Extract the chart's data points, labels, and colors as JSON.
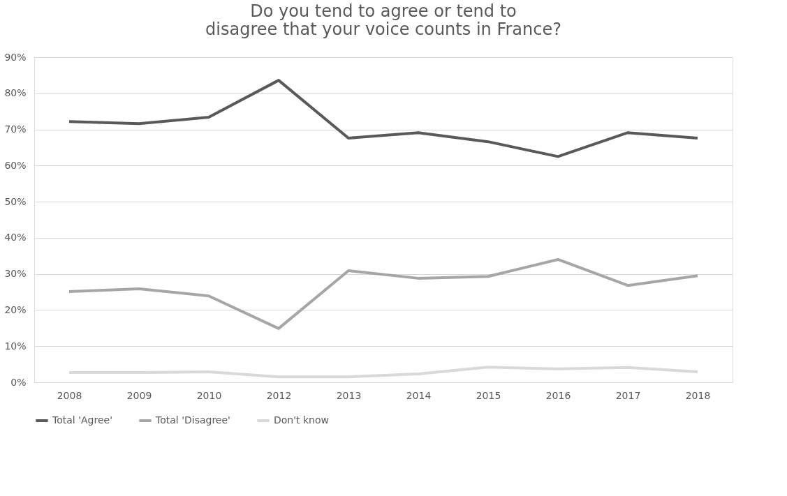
{
  "chart_data": {
    "type": "line",
    "title": "Do you tend to agree or tend to disagree that your voice counts in France?",
    "categories": [
      "2008",
      "2009",
      "2010",
      "2012",
      "2013",
      "2014",
      "2015",
      "2016",
      "2017",
      "2018"
    ],
    "series": [
      {
        "name": "Total 'Agree'",
        "color": "#595959",
        "values": [
          72.2,
          71.6,
          73.4,
          83.6,
          67.6,
          69.1,
          66.6,
          62.5,
          69.1,
          67.6
        ]
      },
      {
        "name": "Total 'Disagree'",
        "color": "#a6a6a6",
        "values": [
          25.1,
          25.9,
          23.9,
          14.9,
          30.9,
          28.8,
          29.3,
          34.0,
          26.8,
          29.5
        ]
      },
      {
        "name": "Don't know",
        "color": "#d9d9d9",
        "values": [
          2.7,
          2.7,
          2.9,
          1.5,
          1.5,
          2.3,
          4.2,
          3.7,
          4.1,
          2.9
        ]
      }
    ],
    "ylim": [
      0,
      90
    ],
    "yticks": [
      {
        "value": 0,
        "label": "0%"
      },
      {
        "value": 10,
        "label": "10%"
      },
      {
        "value": 20,
        "label": "20%"
      },
      {
        "value": 30,
        "label": "30%"
      },
      {
        "value": 40,
        "label": "40%"
      },
      {
        "value": 50,
        "label": "50%"
      },
      {
        "value": 60,
        "label": "60%"
      },
      {
        "value": 70,
        "label": "70%"
      },
      {
        "value": 80,
        "label": "80%"
      },
      {
        "value": 90,
        "label": "90%"
      }
    ],
    "grid": "y",
    "legend": "bottom",
    "marker": "none",
    "line_style": "solid"
  }
}
